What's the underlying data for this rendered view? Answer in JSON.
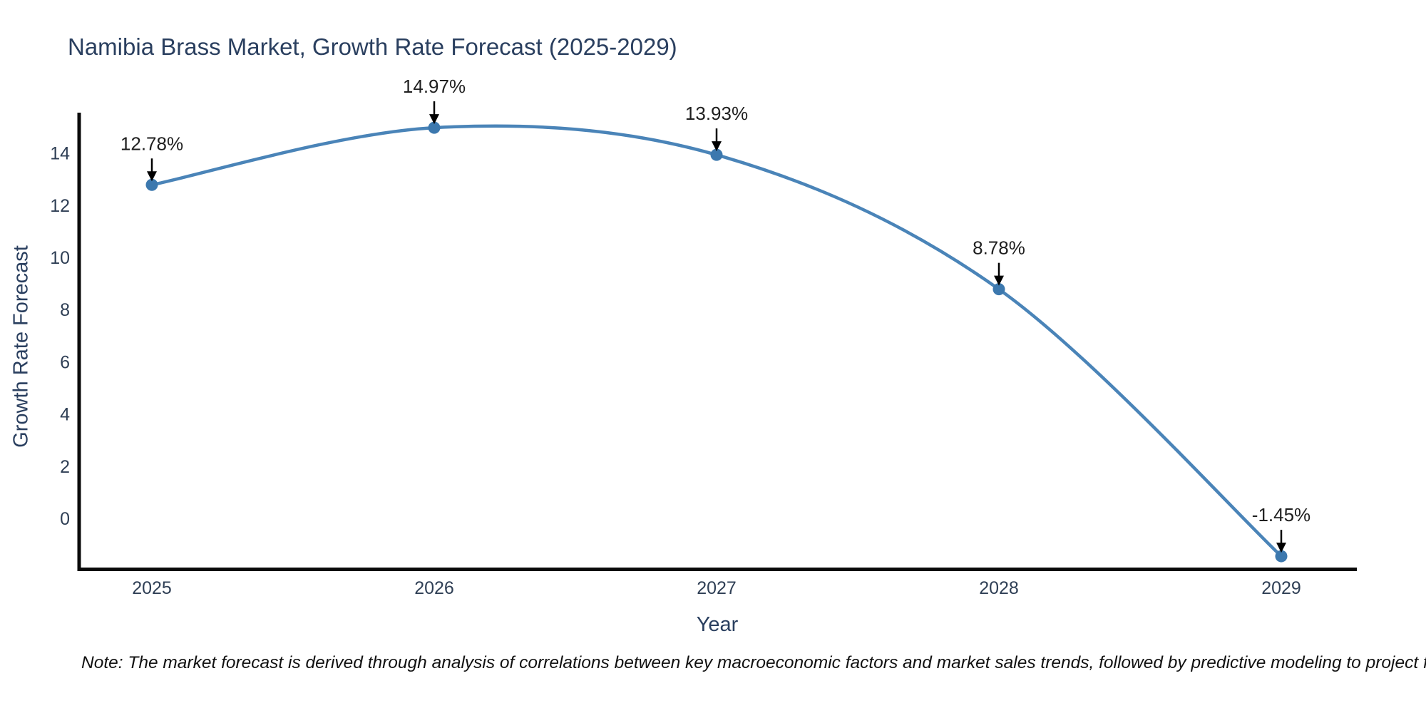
{
  "note": "Note: The market forecast is derived through analysis of correlations between key macroeconomic factors and market sales trends, followed by predictive modeling to project future sales",
  "chart_data": {
    "type": "line",
    "title": "Namibia Brass Market, Growth Rate Forecast (2025-2029)",
    "xlabel": "Year",
    "ylabel": "Growth Rate Forecast",
    "x": [
      2025,
      2026,
      2027,
      2028,
      2029
    ],
    "values": [
      12.78,
      14.97,
      13.93,
      8.78,
      -1.45
    ],
    "point_labels": [
      "12.78%",
      "14.97%",
      "13.93%",
      "8.78%",
      "-1.45%"
    ],
    "yticks": [
      14,
      12,
      10,
      8,
      6,
      4,
      2,
      0
    ],
    "ylim": [
      -1.95,
      15.6
    ],
    "grid": false,
    "legend": "none",
    "line_shape": "spline",
    "colors": {
      "line": "#4a84b8",
      "marker": "#3c78ae",
      "axis_line": "#0a0a0a",
      "tick_text": "#2f3f55",
      "title_text": "#2a3f5f",
      "annotation_text": "#1f1f1f",
      "annotation_arrow": "#000000",
      "background": "#ffffff"
    }
  }
}
